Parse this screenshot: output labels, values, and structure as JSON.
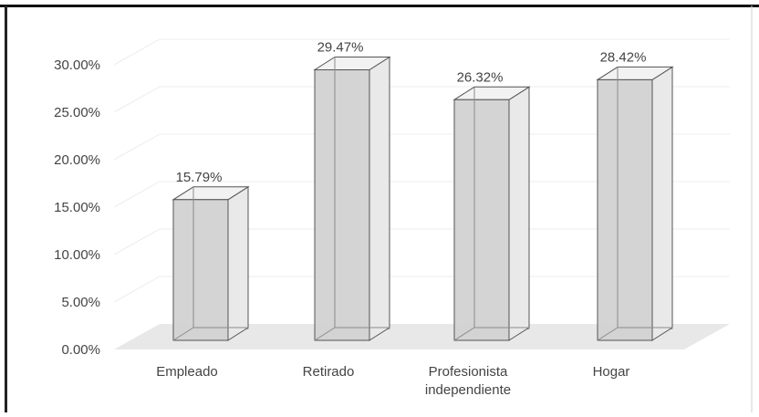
{
  "chart_data": {
    "type": "bar",
    "categories": [
      "Empleado",
      "Retirado",
      "Profesionista\nindependiente",
      "Hogar"
    ],
    "values": [
      15.79,
      29.47,
      26.32,
      28.42
    ],
    "data_labels": [
      "15.79%",
      "29.47%",
      "26.32%",
      "28.42%"
    ],
    "yticks": [
      "0.00%",
      "5.00%",
      "10.00%",
      "15.00%",
      "20.00%",
      "25.00%",
      "30.00%"
    ],
    "ylim": [
      0,
      30
    ],
    "grid": true,
    "style": "3d-column",
    "bar_color": "#d2d2d2"
  }
}
